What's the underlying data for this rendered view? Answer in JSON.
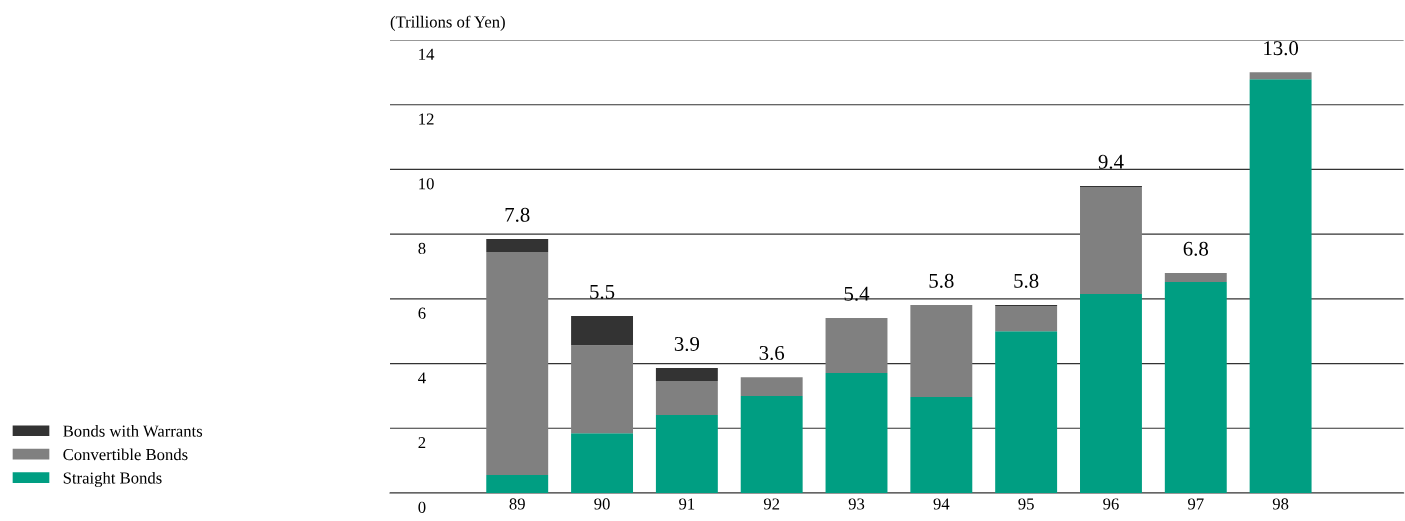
{
  "chart_data": {
    "type": "bar",
    "stacked": true,
    "ylabel": "(Trillions of Yen)",
    "categories": [
      "89",
      "90",
      "91",
      "92",
      "93",
      "94",
      "95",
      "96",
      "97",
      "98"
    ],
    "series": [
      {
        "name": "Straight Bonds",
        "color": "#009e82",
        "values": [
          0.56,
          1.85,
          2.41,
          3.0,
          3.71,
          2.97,
          5.0,
          6.15,
          6.52,
          12.79
        ]
      },
      {
        "name": "Convertible Bonds",
        "color": "#808080",
        "values": [
          6.89,
          2.72,
          1.05,
          0.58,
          1.7,
          2.84,
          0.78,
          3.31,
          0.28,
          0.21
        ]
      },
      {
        "name": "Bonds with Warrants",
        "color": "#333333",
        "values": [
          0.4,
          0.9,
          0.4,
          0,
          0,
          0,
          0.03,
          0.03,
          0,
          0
        ]
      }
    ],
    "totals": [
      "7.8",
      "5.5",
      "3.9",
      "3.6",
      "5.4",
      "5.8",
      "5.8",
      "9.4",
      "6.8",
      "13.0"
    ],
    "ylim": [
      0,
      14
    ],
    "yticks": [
      0,
      2,
      4,
      6,
      8,
      10,
      12,
      14
    ],
    "grid": "y",
    "legend": "bottom left"
  }
}
